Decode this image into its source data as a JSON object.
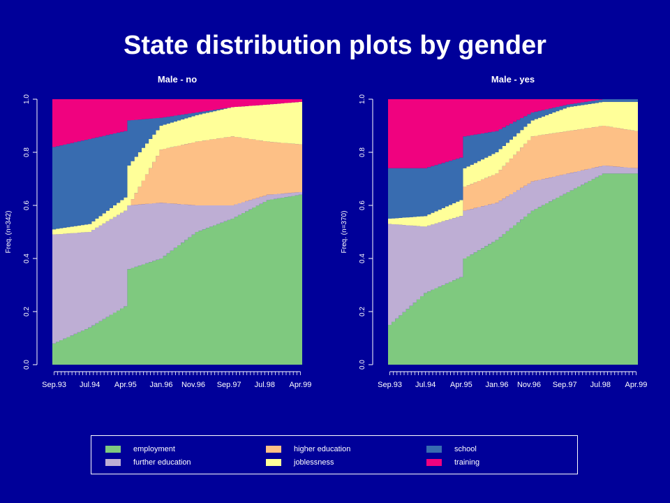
{
  "title": "State distribution plots by gender",
  "colors": {
    "employment": "#7FC97F",
    "further education": "#BEAED4",
    "higher education": "#FDC086",
    "joblessness": "#FFFF99",
    "school": "#386CB0",
    "training": "#F0027F"
  },
  "legend": [
    "employment",
    "further education",
    "higher education",
    "joblessness",
    "school",
    "training"
  ],
  "chart_data": [
    {
      "type": "area",
      "title": "Male - no",
      "ylabel": "Freq. (n=342)",
      "ylim": [
        0,
        1
      ],
      "yticks": [
        0.0,
        0.2,
        0.4,
        0.6,
        0.8,
        1.0
      ],
      "x_tick_labels": [
        "Sep.93",
        "Jul.94",
        "Apr.95",
        "Jan.96",
        "Nov.96",
        "Sep.97",
        "Jul.98",
        "Apr.99"
      ],
      "x": [
        0,
        10,
        20,
        21,
        30,
        40,
        50,
        60,
        69
      ],
      "series": [
        {
          "name": "employment",
          "values": [
            0.08,
            0.14,
            0.22,
            0.36,
            0.4,
            0.5,
            0.55,
            0.62,
            0.64
          ]
        },
        {
          "name": "further education",
          "values": [
            0.49,
            0.5,
            0.58,
            0.6,
            0.61,
            0.6,
            0.6,
            0.64,
            0.65
          ]
        },
        {
          "name": "higher education",
          "values": [
            0.49,
            0.5,
            0.58,
            0.6,
            0.81,
            0.84,
            0.86,
            0.84,
            0.83
          ]
        },
        {
          "name": "joblessness",
          "values": [
            0.51,
            0.53,
            0.63,
            0.75,
            0.9,
            0.94,
            0.97,
            0.98,
            0.99
          ]
        },
        {
          "name": "school",
          "values": [
            0.82,
            0.85,
            0.88,
            0.92,
            0.93,
            0.95,
            0.97,
            0.98,
            0.99
          ]
        },
        {
          "name": "training",
          "values": [
            1.0,
            1.0,
            1.0,
            1.0,
            1.0,
            1.0,
            1.0,
            1.0,
            1.0
          ]
        }
      ]
    },
    {
      "type": "area",
      "title": "Male - yes",
      "ylabel": "Freq. (n=370)",
      "ylim": [
        0,
        1
      ],
      "yticks": [
        0.0,
        0.2,
        0.4,
        0.6,
        0.8,
        1.0
      ],
      "x_tick_labels": [
        "Sep.93",
        "Jul.94",
        "Apr.95",
        "Jan.96",
        "Nov.96",
        "Sep.97",
        "Jul.98",
        "Apr.99"
      ],
      "x": [
        0,
        10,
        20,
        21,
        30,
        40,
        50,
        60,
        69
      ],
      "series": [
        {
          "name": "employment",
          "values": [
            0.15,
            0.27,
            0.33,
            0.4,
            0.47,
            0.58,
            0.65,
            0.72,
            0.72
          ]
        },
        {
          "name": "further education",
          "values": [
            0.53,
            0.52,
            0.56,
            0.58,
            0.61,
            0.69,
            0.72,
            0.75,
            0.74
          ]
        },
        {
          "name": "higher education",
          "values": [
            0.53,
            0.52,
            0.56,
            0.67,
            0.72,
            0.86,
            0.88,
            0.9,
            0.88
          ]
        },
        {
          "name": "joblessness",
          "values": [
            0.55,
            0.56,
            0.62,
            0.74,
            0.8,
            0.92,
            0.97,
            0.99,
            0.99
          ]
        },
        {
          "name": "school",
          "values": [
            0.74,
            0.74,
            0.78,
            0.86,
            0.88,
            0.95,
            0.98,
            1.0,
            1.0
          ]
        },
        {
          "name": "training",
          "values": [
            1.0,
            1.0,
            1.0,
            1.0,
            1.0,
            1.0,
            1.0,
            1.0,
            1.0
          ]
        }
      ]
    }
  ]
}
